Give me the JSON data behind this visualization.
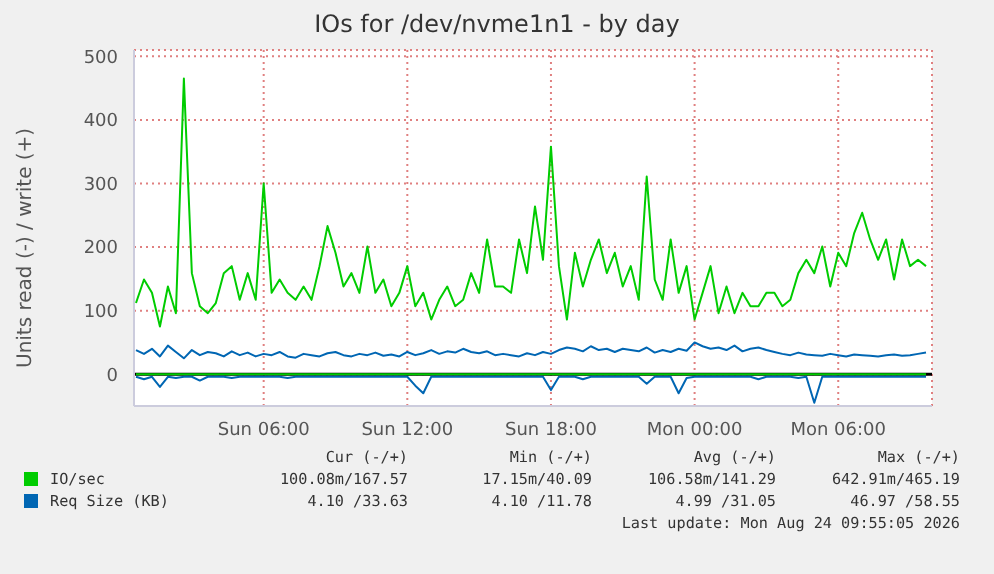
{
  "chart_data": {
    "type": "line",
    "title": "IOs for /dev/nvme1n1 - by day",
    "ylabel": "Units read (-) / write (+)",
    "x": [
      "2026-08-23T00:40",
      "2026-08-23T01:00",
      "2026-08-23T01:20",
      "2026-08-23T01:40",
      "2026-08-23T02:00",
      "2026-08-23T02:20",
      "2026-08-23T02:40",
      "2026-08-23T03:00",
      "2026-08-23T03:20",
      "2026-08-23T03:40",
      "2026-08-23T04:00",
      "2026-08-23T04:20",
      "2026-08-23T04:40",
      "2026-08-23T05:00",
      "2026-08-23T05:20",
      "2026-08-23T05:40",
      "2026-08-23T06:00",
      "2026-08-23T06:20",
      "2026-08-23T06:40",
      "2026-08-23T07:00",
      "2026-08-23T07:20",
      "2026-08-23T07:40",
      "2026-08-23T08:00",
      "2026-08-23T08:20",
      "2026-08-23T08:40",
      "2026-08-23T09:00",
      "2026-08-23T09:20",
      "2026-08-23T09:40",
      "2026-08-23T10:00",
      "2026-08-23T10:20",
      "2026-08-23T10:40",
      "2026-08-23T11:00",
      "2026-08-23T11:20",
      "2026-08-23T11:40",
      "2026-08-23T12:00",
      "2026-08-23T12:20",
      "2026-08-23T12:40",
      "2026-08-23T13:00",
      "2026-08-23T13:20",
      "2026-08-23T13:40",
      "2026-08-23T14:00",
      "2026-08-23T14:20",
      "2026-08-23T14:40",
      "2026-08-23T15:00",
      "2026-08-23T15:20",
      "2026-08-23T15:40",
      "2026-08-23T16:00",
      "2026-08-23T16:20",
      "2026-08-23T16:40",
      "2026-08-23T17:00",
      "2026-08-23T17:20",
      "2026-08-23T17:40",
      "2026-08-23T18:00",
      "2026-08-23T18:20",
      "2026-08-23T18:40",
      "2026-08-23T19:00",
      "2026-08-23T19:20",
      "2026-08-23T19:40",
      "2026-08-23T20:00",
      "2026-08-23T20:20",
      "2026-08-23T20:40",
      "2026-08-23T21:00",
      "2026-08-23T21:20",
      "2026-08-23T21:40",
      "2026-08-23T22:00",
      "2026-08-23T22:20",
      "2026-08-23T22:40",
      "2026-08-23T23:00",
      "2026-08-23T23:20",
      "2026-08-23T23:40",
      "2026-08-24T00:00",
      "2026-08-24T00:20",
      "2026-08-24T00:40",
      "2026-08-24T01:00",
      "2026-08-24T01:20",
      "2026-08-24T01:40",
      "2026-08-24T02:00",
      "2026-08-24T02:20",
      "2026-08-24T02:40",
      "2026-08-24T03:00",
      "2026-08-24T03:20",
      "2026-08-24T03:40",
      "2026-08-24T04:00",
      "2026-08-24T04:20",
      "2026-08-24T04:40",
      "2026-08-24T05:00",
      "2026-08-24T05:20",
      "2026-08-24T05:40",
      "2026-08-24T06:00",
      "2026-08-24T06:20",
      "2026-08-24T06:40",
      "2026-08-24T07:00",
      "2026-08-24T07:20",
      "2026-08-24T07:40",
      "2026-08-24T08:00",
      "2026-08-24T08:20",
      "2026-08-24T08:40",
      "2026-08-24T09:00",
      "2026-08-24T09:20",
      "2026-08-24T09:40"
    ],
    "series": [
      {
        "name": "IO/sec",
        "color": "#00cc00",
        "values": [
          112,
          149,
          128,
          75,
          138,
          96,
          465,
          159,
          107,
          96,
          112,
          159,
          170,
          117,
          159,
          117,
          300,
          128,
          149,
          128,
          117,
          138,
          117,
          170,
          233,
          191,
          138,
          159,
          128,
          201,
          128,
          149,
          107,
          128,
          170,
          107,
          128,
          86,
          117,
          138,
          107,
          117,
          159,
          128,
          212,
          138,
          138,
          128,
          212,
          159,
          264,
          180,
          358,
          170,
          86,
          191,
          138,
          180,
          212,
          159,
          191,
          138,
          170,
          117,
          311,
          149,
          117,
          212,
          128,
          170,
          86,
          128,
          170,
          96,
          138,
          96,
          128,
          107,
          107,
          128,
          128,
          107,
          117,
          159,
          180,
          159,
          201,
          138,
          191,
          170,
          222,
          254,
          212,
          180,
          212,
          149,
          212,
          170,
          180,
          170
        ]
      },
      {
        "color": "#00cc00",
        "values": [
          0,
          0,
          0,
          0,
          0,
          0,
          0,
          0,
          0,
          0,
          0,
          0,
          0,
          0,
          0,
          0,
          0,
          0,
          0,
          0,
          0,
          0,
          0,
          0,
          0,
          0,
          0,
          0,
          0,
          0,
          0,
          0,
          0,
          0,
          0,
          0,
          0,
          0,
          0,
          0,
          0,
          0,
          0,
          0,
          0,
          0,
          0,
          0,
          0,
          0,
          0,
          0,
          0,
          0,
          0,
          0,
          0,
          0,
          0,
          0,
          0,
          0,
          0,
          0,
          0,
          0,
          0,
          0,
          0,
          0,
          0,
          0,
          0,
          0,
          0,
          0,
          0,
          0,
          0,
          0,
          0,
          0,
          0,
          0,
          0,
          0,
          0,
          0,
          0,
          0,
          0,
          0,
          0,
          0,
          0,
          0,
          0,
          0,
          0,
          0
        ]
      },
      {
        "name": "Req Size (KB)",
        "color": "#0066b3",
        "values": [
          38,
          32,
          40,
          28,
          45,
          35,
          25,
          38,
          30,
          35,
          33,
          28,
          36,
          30,
          34,
          28,
          32,
          30,
          35,
          28,
          26,
          32,
          30,
          28,
          33,
          35,
          30,
          28,
          32,
          30,
          34,
          29,
          31,
          28,
          35,
          30,
          33,
          38,
          32,
          36,
          34,
          40,
          35,
          33,
          36,
          30,
          32,
          30,
          28,
          33,
          30,
          35,
          32,
          38,
          42,
          40,
          36,
          44,
          38,
          40,
          35,
          40,
          38,
          36,
          42,
          34,
          38,
          35,
          40,
          37,
          50,
          44,
          40,
          42,
          38,
          45,
          36,
          40,
          42,
          38,
          35,
          32,
          30,
          34,
          31,
          30,
          29,
          32,
          30,
          28,
          31,
          30,
          29,
          28,
          30,
          31,
          29,
          30,
          32,
          34
        ]
      },
      {
        "color": "#0066b3",
        "values": [
          -4,
          -8,
          -4,
          -20,
          -4,
          -6,
          -4,
          -4,
          -10,
          -4,
          -4,
          -4,
          -6,
          -4,
          -4,
          -4,
          -4,
          -4,
          -4,
          -6,
          -4,
          -4,
          -4,
          -4,
          -4,
          -4,
          -4,
          -4,
          -4,
          -4,
          -4,
          -4,
          -4,
          -4,
          -4,
          -18,
          -30,
          -4,
          -4,
          -4,
          -4,
          -4,
          -4,
          -4,
          -4,
          -4,
          -4,
          -4,
          -4,
          -4,
          -4,
          -4,
          -25,
          -4,
          -4,
          -4,
          -8,
          -4,
          -4,
          -4,
          -4,
          -4,
          -4,
          -4,
          -15,
          -4,
          -4,
          -4,
          -30,
          -6,
          -4,
          -4,
          -4,
          -4,
          -4,
          -4,
          -4,
          -4,
          -8,
          -4,
          -4,
          -4,
          -4,
          -6,
          -4,
          -45,
          -4,
          -4,
          -4,
          -4,
          -4,
          -4,
          -4,
          -4,
          -4,
          -4,
          -4,
          -4,
          -4,
          -4
        ]
      }
    ],
    "xlim": [
      "2026-08-23T00:35",
      "2026-08-24T09:55"
    ],
    "xticks": [
      {
        "value": "2026-08-23T06:00",
        "label": "Sun 06:00"
      },
      {
        "value": "2026-08-23T12:00",
        "label": "Sun 12:00"
      },
      {
        "value": "2026-08-23T18:00",
        "label": "Sun 18:00"
      },
      {
        "value": "2026-08-24T00:00",
        "label": "Mon 00:00"
      },
      {
        "value": "2026-08-24T06:00",
        "label": "Mon 06:00"
      }
    ],
    "ylim": [
      -50,
      510
    ],
    "yticks": [
      0,
      100,
      200,
      300,
      400,
      500
    ],
    "ref_lines": [
      {
        "axis": "y",
        "value": 0,
        "color": "#000000"
      }
    ],
    "grid": true,
    "legend": "bottom",
    "annotations": [
      "Cur (-/+)",
      "Min (-/+)",
      "Avg (-/+)",
      "Max (-/+)",
      "100.08m/167.57",
      "17.15m/40.09",
      "106.58m/141.29",
      "642.91m/465.19",
      "4.10 /33.63",
      "4.10 /11.78",
      "4.99 /31.05",
      "46.97 /58.55",
      "Last update: Mon Aug 24 09:55:05 2026"
    ]
  }
}
